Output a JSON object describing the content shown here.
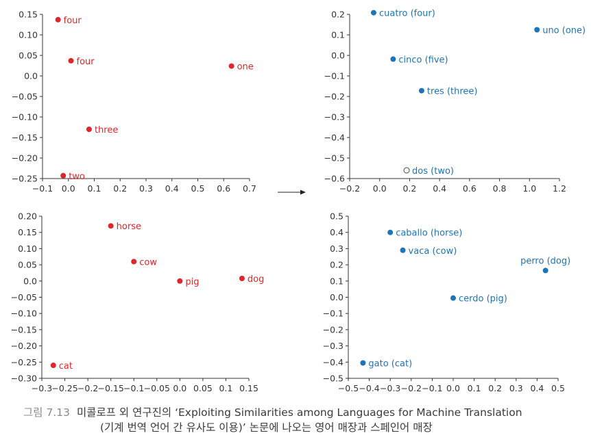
{
  "caption": {
    "figure_number": "그림 7.13",
    "line1": "미콜로프 외 연구진의 ‘Exploiting Similarities among Languages for Machine Translation",
    "line2": "(기계 번역 언어 간 유사도 이용)’ 논문에 나오는 영어 매장과 스페인어 매장"
  },
  "colors": {
    "english": "#e0262b",
    "spanish": "#1f73b7",
    "axis": "#333333",
    "arrow": "#222222"
  },
  "chart_data": [
    {
      "type": "scatter",
      "panel": "top-left",
      "xlim": [
        -0.1,
        0.7
      ],
      "ylim": [
        -0.25,
        0.15
      ],
      "xticks": [
        "−0.1",
        "0.0",
        "0.1",
        "0.2",
        "0.3",
        "0.4",
        "0.5",
        "0.6",
        "0.7"
      ],
      "yticks": [
        "0.15",
        "0.10",
        "0.05",
        "0.0",
        "−0.05",
        "−0.10",
        "−0.15",
        "−0.20",
        "−0.25"
      ],
      "color": "#e0262b",
      "points": [
        {
          "x": -0.04,
          "y": 0.137,
          "label": "four"
        },
        {
          "x": 0.01,
          "y": 0.037,
          "label": "four"
        },
        {
          "x": 0.63,
          "y": 0.024,
          "label": "one"
        },
        {
          "x": 0.08,
          "y": -0.13,
          "label": "three"
        },
        {
          "x": -0.02,
          "y": -0.243,
          "label": "two"
        }
      ]
    },
    {
      "type": "scatter",
      "panel": "top-right",
      "xlim": [
        -0.2,
        1.2
      ],
      "ylim": [
        -0.6,
        0.2
      ],
      "xticks": [
        "−0.2",
        "0.0",
        "0.2",
        "0.4",
        "0.6",
        "0.8",
        "1.0",
        "1.2"
      ],
      "yticks": [
        "0.2",
        "0.1",
        "0.0",
        "−0.1",
        "−0.2",
        "−0.3",
        "−0.4",
        "−0.5",
        "−0.6"
      ],
      "color": "#1f73b7",
      "points": [
        {
          "x": -0.04,
          "y": 0.208,
          "label": "cuatro (four)"
        },
        {
          "x": 1.05,
          "y": 0.125,
          "label": "uno (one)"
        },
        {
          "x": 0.09,
          "y": -0.018,
          "label": "cinco (five)"
        },
        {
          "x": 0.28,
          "y": -0.172,
          "label": "tres (three)"
        },
        {
          "x": 0.18,
          "y": -0.56,
          "label": "dos (two)",
          "hollow": true
        }
      ]
    },
    {
      "type": "scatter",
      "panel": "bottom-left",
      "xlim": [
        -0.3,
        0.15
      ],
      "ylim": [
        -0.3,
        0.2
      ],
      "xticks": [
        "−0.3",
        "−0.25",
        "−0.2",
        "−0.15",
        "−0.1",
        "−0.05",
        "0.0",
        "0.05",
        "0.1",
        "0.15"
      ],
      "yticks": [
        "0.20",
        "0.15",
        "0.10",
        "0.05",
        "0.0",
        "−0.05",
        "−0.10",
        "−0.15",
        "−0.20",
        "−0.25",
        "−0.30"
      ],
      "color": "#e0262b",
      "points": [
        {
          "x": -0.15,
          "y": 0.17,
          "label": "horse"
        },
        {
          "x": -0.1,
          "y": 0.06,
          "label": "cow"
        },
        {
          "x": 0.0,
          "y": 0.0,
          "label": "pig"
        },
        {
          "x": 0.135,
          "y": 0.008,
          "label": "dog"
        },
        {
          "x": -0.275,
          "y": -0.26,
          "label": "cat"
        }
      ]
    },
    {
      "type": "scatter",
      "panel": "bottom-right",
      "xlim": [
        -0.5,
        0.5
      ],
      "ylim": [
        -0.5,
        0.5
      ],
      "xticks": [
        "−0.5",
        "−0.4",
        "−0.3",
        "−0.2",
        "−0.1",
        "0.0",
        "0.1",
        "0.2",
        "0.3",
        "0.4",
        "0.5"
      ],
      "yticks": [
        "0.5",
        "0.4",
        "0.3",
        "0.2",
        "0.1",
        "0.0",
        "−0.1",
        "−0.2",
        "−0.3",
        "−0.4",
        "−0.5"
      ],
      "color": "#1f73b7",
      "points": [
        {
          "x": -0.3,
          "y": 0.4,
          "label": "caballo (horse)"
        },
        {
          "x": -0.24,
          "y": 0.29,
          "label": "vaca (cow)"
        },
        {
          "x": 0.44,
          "y": 0.165,
          "label": "perro (dog)",
          "label_above": true
        },
        {
          "x": 0.0,
          "y": -0.005,
          "label": "cerdo (pig)"
        },
        {
          "x": -0.43,
          "y": -0.405,
          "label": "gato (cat)"
        }
      ]
    }
  ]
}
